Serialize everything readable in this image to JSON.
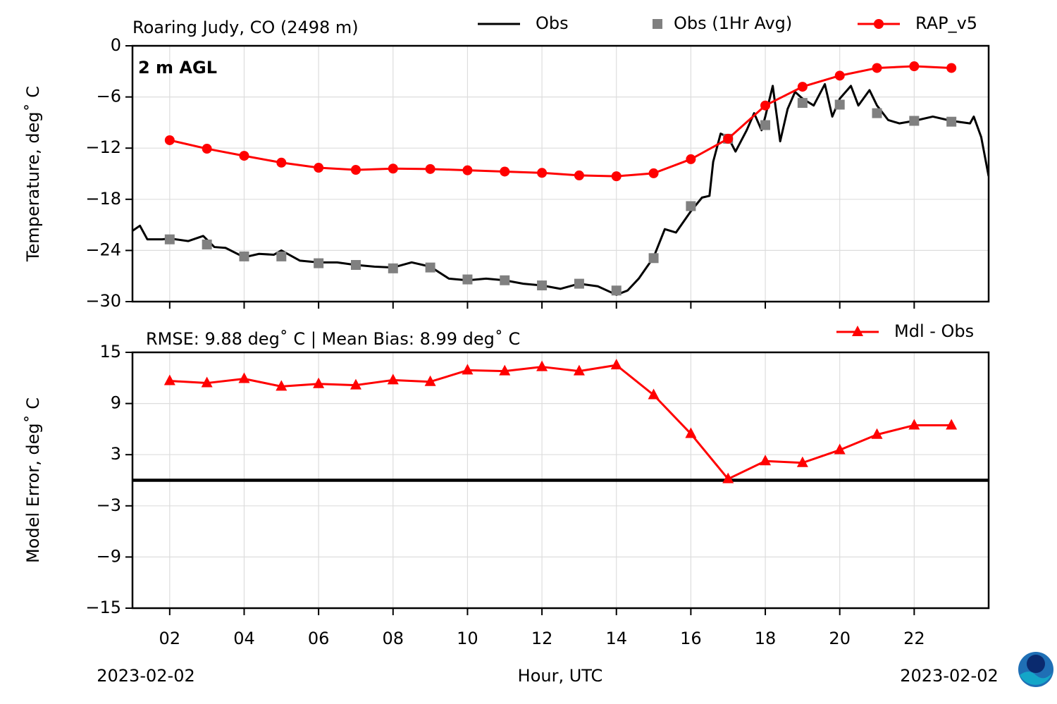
{
  "chart_data": [
    {
      "type": "line",
      "title": "Roaring Judy, CO (2498 m)",
      "annotation": "2 m AGL",
      "ylabel": "Temperature, deg˚ C",
      "xlim": [
        1,
        24
      ],
      "xticks": [
        2,
        4,
        6,
        8,
        10,
        12,
        14,
        16,
        18,
        20,
        22
      ],
      "xtick_labels": false,
      "ylim": [
        -30,
        0
      ],
      "yticks": [
        {
          "value": 0,
          "label": "0"
        },
        {
          "value": -6,
          "label": "−6"
        },
        {
          "value": -12,
          "label": "−12"
        },
        {
          "value": -18,
          "label": "−18"
        },
        {
          "value": -24,
          "label": "−24"
        },
        {
          "value": -30,
          "label": "−30"
        }
      ],
      "grid": true,
      "series": [
        {
          "name": "Obs",
          "color": "#000000",
          "line": true,
          "marker": null,
          "x": [
            1,
            1.2,
            1.4,
            1.8,
            2,
            2.5,
            2.9,
            3.2,
            3.5,
            4,
            4.4,
            4.8,
            5,
            5.5,
            6,
            6.5,
            7,
            7.5,
            8,
            8.5,
            9,
            9.5,
            10,
            10.5,
            11,
            11.5,
            12,
            12.5,
            13,
            13.5,
            14,
            14.3,
            14.6,
            15,
            15.3,
            15.6,
            16,
            16.3,
            16.5,
            16.6,
            16.8,
            17,
            17.2,
            17.5,
            17.7,
            17.9,
            18,
            18.2,
            18.4,
            18.6,
            18.8,
            19,
            19.3,
            19.6,
            19.8,
            20,
            20.3,
            20.5,
            20.8,
            21,
            21.3,
            21.6,
            22,
            22.5,
            23,
            23.5,
            23.6,
            23.8,
            24
          ],
          "values": [
            -21.7,
            -21.1,
            -22.7,
            -22.7,
            -22.6,
            -22.9,
            -22.3,
            -23.6,
            -23.7,
            -24.8,
            -24.4,
            -24.5,
            -24.0,
            -25.2,
            -25.4,
            -25.4,
            -25.7,
            -25.9,
            -26.0,
            -25.4,
            -25.9,
            -27.3,
            -27.5,
            -27.3,
            -27.5,
            -27.9,
            -28.1,
            -28.5,
            -27.9,
            -28.2,
            -29.2,
            -28.7,
            -27.3,
            -24.8,
            -21.5,
            -21.9,
            -19.4,
            -17.8,
            -17.6,
            -13.6,
            -10.3,
            -10.7,
            -12.4,
            -9.9,
            -7.9,
            -9.9,
            -8.3,
            -4.7,
            -11.2,
            -7.4,
            -5.4,
            -6.2,
            -7.0,
            -4.5,
            -8.3,
            -6.2,
            -4.7,
            -7.0,
            -5.2,
            -7.0,
            -8.7,
            -9.1,
            -8.8,
            -8.3,
            -8.8,
            -9.1,
            -8.3,
            -10.7,
            -15.3
          ]
        },
        {
          "name": "Obs (1Hr Avg)",
          "color": "#808080",
          "line": false,
          "marker": "square",
          "x": [
            2,
            3,
            4,
            5,
            6,
            7,
            8,
            9,
            10,
            11,
            12,
            13,
            14,
            15,
            16,
            17,
            18,
            19,
            20,
            21,
            22,
            23
          ],
          "values": [
            -22.7,
            -23.3,
            -24.7,
            -24.7,
            -25.5,
            -25.7,
            -26.1,
            -26.0,
            -27.4,
            -27.5,
            -28.1,
            -27.9,
            -28.7,
            -24.9,
            -18.8,
            -10.9,
            -9.3,
            -6.7,
            -6.9,
            -7.9,
            -8.8,
            -8.9
          ]
        },
        {
          "name": "RAP_v5",
          "color": "#ff0000",
          "line": true,
          "marker": "circle",
          "x": [
            2,
            3,
            4,
            5,
            6,
            7,
            8,
            9,
            10,
            11,
            12,
            13,
            14,
            15,
            16,
            17,
            18,
            19,
            20,
            21,
            22,
            23
          ],
          "values": [
            -11.07,
            -12.07,
            -12.9,
            -13.7,
            -14.3,
            -14.55,
            -14.4,
            -14.45,
            -14.6,
            -14.75,
            -14.9,
            -15.2,
            -15.3,
            -14.95,
            -13.3,
            -10.9,
            -7.0,
            -4.8,
            -3.5,
            -2.6,
            -2.4,
            -2.6
          ]
        }
      ]
    },
    {
      "type": "line",
      "title": "RMSE: 9.88 deg˚ C | Mean Bias: 8.99 deg˚ C",
      "ylabel": "Model Error, deg˚ C",
      "xlabel": "Hour, UTC",
      "date_labels": [
        "2023-02-02",
        "2023-02-02"
      ],
      "xlim": [
        1,
        24
      ],
      "xticks": [
        {
          "value": 2,
          "label": "02"
        },
        {
          "value": 4,
          "label": "04"
        },
        {
          "value": 6,
          "label": "06"
        },
        {
          "value": 8,
          "label": "08"
        },
        {
          "value": 10,
          "label": "10"
        },
        {
          "value": 12,
          "label": "12"
        },
        {
          "value": 14,
          "label": "14"
        },
        {
          "value": 16,
          "label": "16"
        },
        {
          "value": 18,
          "label": "18"
        },
        {
          "value": 20,
          "label": "20"
        },
        {
          "value": 22,
          "label": "22"
        }
      ],
      "xtick_labels": true,
      "ylim": [
        -15,
        15
      ],
      "yticks": [
        {
          "value": 15,
          "label": "15"
        },
        {
          "value": 9,
          "label": "9"
        },
        {
          "value": 3,
          "label": "3"
        },
        {
          "value": -3,
          "label": "−3"
        },
        {
          "value": -9,
          "label": "−9"
        },
        {
          "value": -15,
          "label": "−15"
        }
      ],
      "grid": true,
      "hline": 0,
      "series": [
        {
          "name": "Mdl - Obs",
          "color": "#ff0000",
          "line": true,
          "marker": "triangle",
          "x": [
            2,
            3,
            4,
            5,
            6,
            7,
            8,
            9,
            10,
            11,
            12,
            13,
            14,
            15,
            16,
            17,
            18,
            19,
            20,
            21,
            22,
            23
          ],
          "values": [
            11.65,
            11.4,
            11.9,
            11.0,
            11.3,
            11.15,
            11.75,
            11.55,
            12.9,
            12.8,
            13.3,
            12.8,
            13.5,
            10.0,
            5.45,
            0.15,
            2.25,
            2.05,
            3.55,
            5.35,
            6.45,
            6.45
          ]
        }
      ]
    }
  ]
}
